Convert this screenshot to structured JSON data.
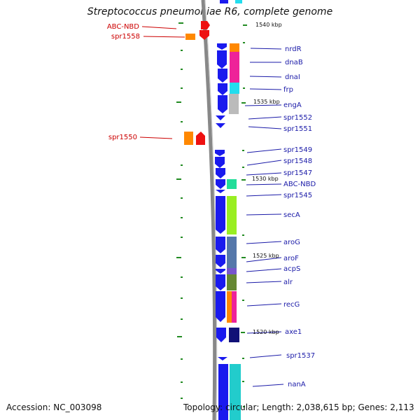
{
  "header": {
    "title": "Streptococcus pneumoniae R6, complete genome"
  },
  "footer": {
    "accession": "Accession: NC_003098",
    "summary": "Topology: circular; Length: 2,038,615 bp; Genes: 2,113"
  },
  "ticks": [
    {
      "label": "1540 kbp"
    },
    {
      "label": "1535 kbp"
    },
    {
      "label": "1530 kbp"
    },
    {
      "label": "1525 kbp"
    },
    {
      "label": "1520 kbp"
    }
  ],
  "right_labels": [
    "nrdR",
    "dnaB",
    "dnaI",
    "frp",
    "engA",
    "spr1552",
    "spr1551",
    "spr1549",
    "spr1548",
    "spr1547",
    "ABC-NBD",
    "spr1545",
    "secA",
    "aroG",
    "aroF",
    "acpS",
    "alr",
    "recG",
    "axe1",
    "spr1537",
    "nanA"
  ],
  "left_labels": [
    "ABC-NBD",
    "spr1558",
    "spr1550"
  ],
  "colors": {
    "backbone": "#888888",
    "gene_blue": "#1a1aee",
    "label_blue": "#1a1aa8",
    "label_red": "#cc0000",
    "tick_green": "#228b22"
  }
}
